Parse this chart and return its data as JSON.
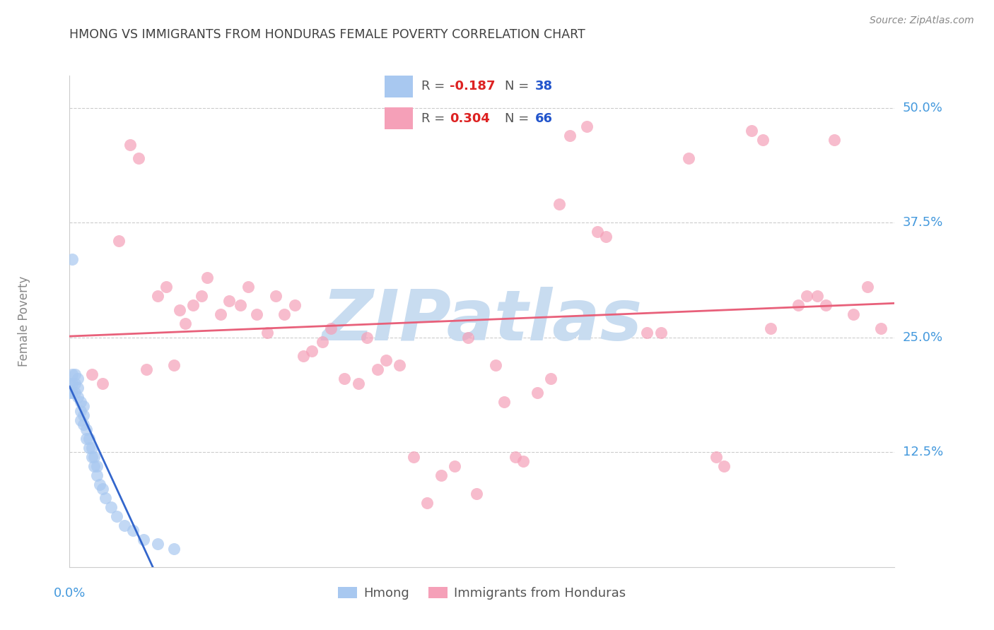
{
  "title": "HMONG VS IMMIGRANTS FROM HONDURAS FEMALE POVERTY CORRELATION CHART",
  "source": "Source: ZipAtlas.com",
  "ylabel": "Female Poverty",
  "ytick_labels": [
    "50.0%",
    "37.5%",
    "25.0%",
    "12.5%"
  ],
  "ytick_values": [
    0.5,
    0.375,
    0.25,
    0.125
  ],
  "xlim": [
    0.0,
    0.3
  ],
  "ylim": [
    0.0,
    0.535
  ],
  "hmong_color": "#a8c8f0",
  "honduras_color": "#f5a0b8",
  "hmong_line_color": "#3366cc",
  "hmong_line_dash_color": "#8888cc",
  "honduras_line_color": "#e8607a",
  "watermark": "ZIPatlas",
  "watermark_color": "#c8dcf0",
  "background_color": "#ffffff",
  "title_color": "#404040",
  "source_color": "#888888",
  "axis_label_color": "#4499dd",
  "grid_color": "#cccccc",
  "ylabel_color": "#888888",
  "hmong_x": [
    0.0,
    0.0,
    0.001,
    0.001,
    0.001,
    0.002,
    0.002,
    0.002,
    0.003,
    0.003,
    0.003,
    0.004,
    0.004,
    0.004,
    0.005,
    0.005,
    0.005,
    0.006,
    0.006,
    0.007,
    0.007,
    0.008,
    0.008,
    0.009,
    0.009,
    0.01,
    0.01,
    0.011,
    0.012,
    0.013,
    0.015,
    0.017,
    0.02,
    0.023,
    0.027,
    0.032,
    0.038,
    0.001
  ],
  "hmong_y": [
    0.19,
    0.2,
    0.19,
    0.2,
    0.21,
    0.19,
    0.2,
    0.21,
    0.185,
    0.195,
    0.205,
    0.16,
    0.17,
    0.18,
    0.155,
    0.165,
    0.175,
    0.14,
    0.15,
    0.13,
    0.14,
    0.12,
    0.13,
    0.11,
    0.12,
    0.1,
    0.11,
    0.09,
    0.085,
    0.075,
    0.065,
    0.055,
    0.045,
    0.04,
    0.03,
    0.025,
    0.02,
    0.335
  ],
  "honduras_x": [
    0.008,
    0.012,
    0.018,
    0.022,
    0.025,
    0.028,
    0.032,
    0.035,
    0.038,
    0.04,
    0.042,
    0.045,
    0.048,
    0.05,
    0.055,
    0.058,
    0.062,
    0.065,
    0.068,
    0.072,
    0.075,
    0.078,
    0.082,
    0.085,
    0.088,
    0.092,
    0.095,
    0.1,
    0.105,
    0.108,
    0.112,
    0.115,
    0.12,
    0.125,
    0.13,
    0.135,
    0.14,
    0.145,
    0.148,
    0.155,
    0.158,
    0.162,
    0.165,
    0.17,
    0.175,
    0.178,
    0.182,
    0.188,
    0.192,
    0.195,
    0.21,
    0.215,
    0.225,
    0.235,
    0.248,
    0.255,
    0.265,
    0.272,
    0.278,
    0.285,
    0.29,
    0.295,
    0.275,
    0.268,
    0.252,
    0.238
  ],
  "honduras_y": [
    0.21,
    0.2,
    0.355,
    0.46,
    0.445,
    0.215,
    0.295,
    0.305,
    0.22,
    0.28,
    0.265,
    0.285,
    0.295,
    0.315,
    0.275,
    0.29,
    0.285,
    0.305,
    0.275,
    0.255,
    0.295,
    0.275,
    0.285,
    0.23,
    0.235,
    0.245,
    0.26,
    0.205,
    0.2,
    0.25,
    0.215,
    0.225,
    0.22,
    0.12,
    0.07,
    0.1,
    0.11,
    0.25,
    0.08,
    0.22,
    0.18,
    0.12,
    0.115,
    0.19,
    0.205,
    0.395,
    0.47,
    0.48,
    0.365,
    0.36,
    0.255,
    0.255,
    0.445,
    0.12,
    0.475,
    0.26,
    0.285,
    0.295,
    0.465,
    0.275,
    0.305,
    0.26,
    0.285,
    0.295,
    0.465,
    0.11
  ]
}
